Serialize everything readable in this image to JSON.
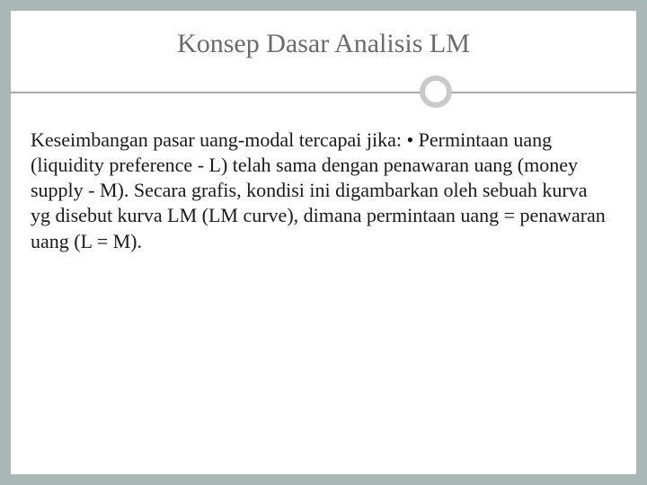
{
  "slide": {
    "title": "Konsep Dasar Analisis LM",
    "body": "Keseimbangan pasar uang-modal tercapai jika: • Permintaan uang (liquidity preference - L) telah sama dengan penawaran uang (money supply - M). Secara grafis, kondisi ini digambarkan oleh sebuah kurva yg disebut kurva LM (LM curve), dimana permintaan uang = penawaran uang (L = M)."
  },
  "style": {
    "background_color": "#a9b8b5",
    "slide_background": "#ffffff",
    "title_color": "#6b6b6b",
    "title_fontsize": 30,
    "body_color": "#1a1a1a",
    "body_fontsize": 22,
    "divider_line_color": "#a9a9a9",
    "circle_border_color": "#c9c9c9",
    "circle_border_width": 6,
    "font_family": "Georgia, Times New Roman, serif"
  }
}
